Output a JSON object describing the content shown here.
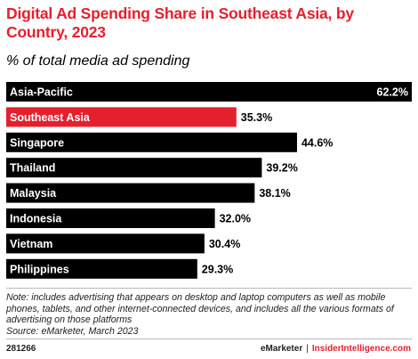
{
  "header": {
    "title": "Digital Ad Spending Share in Southeast Asia, by Country, 2023",
    "subtitle": "% of total media ad spending"
  },
  "chart_data": {
    "type": "bar",
    "orientation": "horizontal",
    "title": "Digital Ad Spending Share in Southeast Asia, by Country, 2023",
    "subtitle": "% of total media ad spending",
    "categories": [
      "Asia-Pacific",
      "Southeast Asia",
      "Singapore",
      "Thailand",
      "Malaysia",
      "Indonesia",
      "Vietnam",
      "Philippines"
    ],
    "values": [
      62.2,
      35.3,
      44.6,
      39.2,
      38.1,
      32.0,
      30.4,
      29.3
    ],
    "value_labels": [
      "62.2%",
      "35.3%",
      "44.6%",
      "39.2%",
      "38.1%",
      "32.0%",
      "30.4%",
      "29.3%"
    ],
    "highlight_category": "Southeast Asia",
    "colors": {
      "default": "#000000",
      "highlight": "#e5202e",
      "bar_text": "#ffffff"
    },
    "xlim": [
      0,
      62.2
    ],
    "grid": false,
    "legend": "none"
  },
  "footer": {
    "note": "Note: includes advertising that appears on desktop and laptop computers as well as mobile phones, tablets, and other internet-connected devices, and includes all the various formats of advertising on those platforms",
    "source": "Source: eMarketer, March 2023",
    "chart_id": "281266",
    "brand_emarketer": "eMarketer",
    "brand_separator": "|",
    "brand_insider": "InsiderIntelligence.com"
  }
}
